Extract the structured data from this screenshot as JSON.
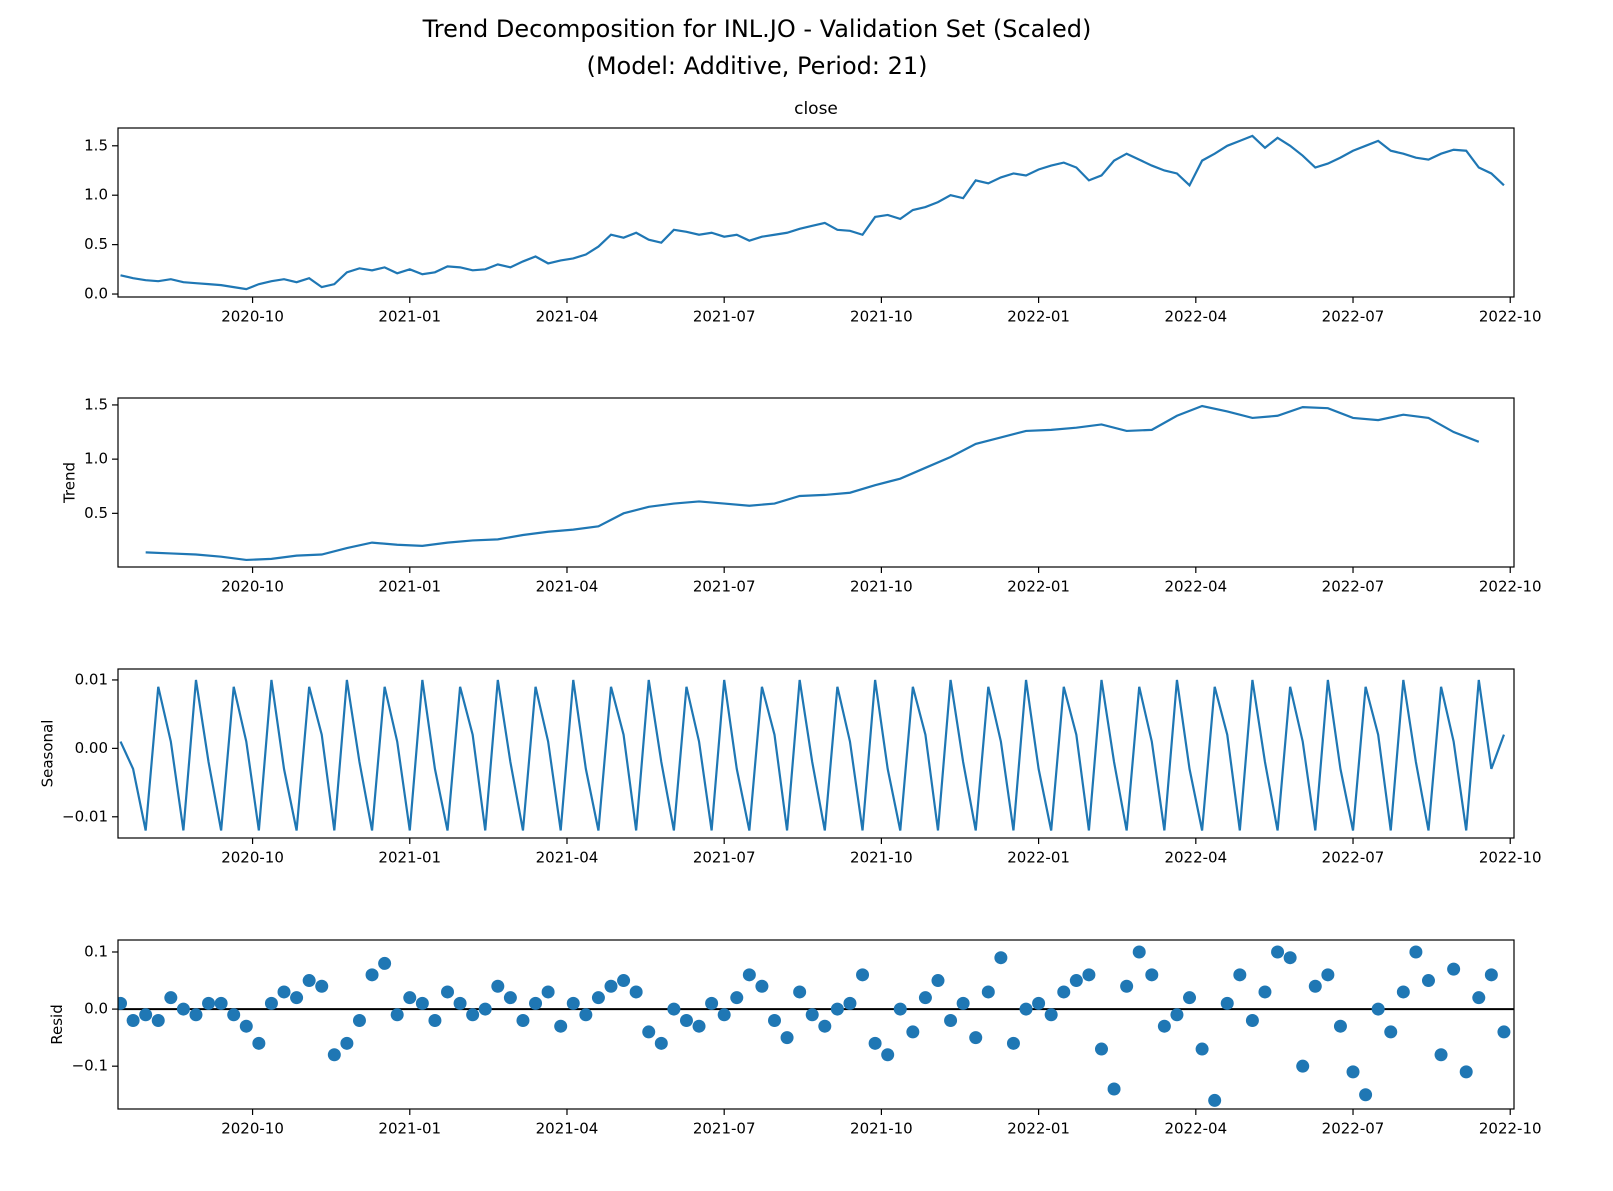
{
  "title": [
    "Trend Decomposition for INL.JO - Validation Set (Scaled)",
    "(Model: Additive, Period: 21)"
  ],
  "chart_data": [
    {
      "type": "line",
      "title": "close",
      "color": "#1f77b4",
      "x": [
        2020.54,
        2020.56,
        2020.58,
        2020.6,
        2020.62,
        2020.64,
        2020.66,
        2020.68,
        2020.7,
        2020.72,
        2020.74,
        2020.76,
        2020.78,
        2020.8,
        2020.82,
        2020.84,
        2020.86,
        2020.88,
        2020.9,
        2020.92,
        2020.94,
        2020.96,
        2020.98,
        2021,
        2021.02,
        2021.04,
        2021.06,
        2021.08,
        2021.1,
        2021.12,
        2021.14,
        2021.16,
        2021.18,
        2021.2,
        2021.22,
        2021.24,
        2021.26,
        2021.28,
        2021.3,
        2021.32,
        2021.34,
        2021.36,
        2021.38,
        2021.4,
        2021.42,
        2021.44,
        2021.46,
        2021.48,
        2021.5,
        2021.52,
        2021.54,
        2021.56,
        2021.58,
        2021.6,
        2021.62,
        2021.64,
        2021.66,
        2021.68,
        2021.7,
        2021.72,
        2021.74,
        2021.76,
        2021.78,
        2021.8,
        2021.82,
        2021.84,
        2021.86,
        2021.88,
        2021.9,
        2021.92,
        2021.94,
        2021.96,
        2021.98,
        2022,
        2022.02,
        2022.04,
        2022.06,
        2022.08,
        2022.1,
        2022.12,
        2022.14,
        2022.16,
        2022.18,
        2022.2,
        2022.22,
        2022.24,
        2022.26,
        2022.28,
        2022.3,
        2022.32,
        2022.34,
        2022.36,
        2022.38,
        2022.4,
        2022.42,
        2022.44,
        2022.46,
        2022.48,
        2022.5,
        2022.52,
        2022.54,
        2022.56,
        2022.58,
        2022.6,
        2022.62,
        2022.64,
        2022.66,
        2022.68,
        2022.7,
        2022.72,
        2022.74
      ],
      "values": [
        0.19,
        0.16,
        0.14,
        0.13,
        0.15,
        0.12,
        0.11,
        0.1,
        0.09,
        0.07,
        0.05,
        0.1,
        0.13,
        0.15,
        0.12,
        0.16,
        0.07,
        0.1,
        0.22,
        0.26,
        0.24,
        0.27,
        0.21,
        0.25,
        0.2,
        0.22,
        0.28,
        0.27,
        0.24,
        0.25,
        0.3,
        0.27,
        0.33,
        0.38,
        0.31,
        0.34,
        0.36,
        0.4,
        0.48,
        0.6,
        0.57,
        0.62,
        0.55,
        0.52,
        0.65,
        0.63,
        0.6,
        0.62,
        0.58,
        0.6,
        0.54,
        0.58,
        0.6,
        0.62,
        0.66,
        0.69,
        0.72,
        0.65,
        0.64,
        0.6,
        0.78,
        0.8,
        0.76,
        0.85,
        0.88,
        0.93,
        1.0,
        0.97,
        1.15,
        1.12,
        1.18,
        1.22,
        1.2,
        1.26,
        1.3,
        1.33,
        1.28,
        1.15,
        1.2,
        1.35,
        1.42,
        1.36,
        1.3,
        1.25,
        1.22,
        1.1,
        1.35,
        1.42,
        1.5,
        1.55,
        1.6,
        1.48,
        1.58,
        1.5,
        1.4,
        1.28,
        1.32,
        1.38,
        1.45,
        1.5,
        1.55,
        1.45,
        1.42,
        1.38,
        1.36,
        1.42,
        1.46,
        1.45,
        1.28,
        1.22,
        1.1
      ],
      "xlim": [
        2020.536,
        2022.756
      ],
      "ylim": [
        -0.03,
        1.68
      ],
      "xticks": [
        {
          "value": 2020.75,
          "label": "2020-10"
        },
        {
          "value": 2021.0,
          "label": "2021-01"
        },
        {
          "value": 2021.25,
          "label": "2021-04"
        },
        {
          "value": 2021.5,
          "label": "2021-07"
        },
        {
          "value": 2021.75,
          "label": "2021-10"
        },
        {
          "value": 2022.0,
          "label": "2022-01"
        },
        {
          "value": 2022.25,
          "label": "2022-04"
        },
        {
          "value": 2022.5,
          "label": "2022-07"
        },
        {
          "value": 2022.75,
          "label": "2022-10"
        }
      ],
      "yticks": [
        {
          "value": 0,
          "label": "0.0"
        },
        0.5,
        {
          "value": 1,
          "label": "1.0"
        },
        1.5
      ]
    },
    {
      "type": "line",
      "ylabel": "Trend",
      "color": "#1f77b4",
      "x": [
        2020.58,
        2020.62,
        2020.66,
        2020.7,
        2020.74,
        2020.78,
        2020.82,
        2020.86,
        2020.9,
        2020.94,
        2020.98,
        2021.02,
        2021.06,
        2021.1,
        2021.14,
        2021.18,
        2021.22,
        2021.26,
        2021.3,
        2021.34,
        2021.38,
        2021.42,
        2021.46,
        2021.5,
        2021.54,
        2021.58,
        2021.62,
        2021.66,
        2021.7,
        2021.74,
        2021.78,
        2021.82,
        2021.86,
        2021.9,
        2021.94,
        2021.98,
        2022.02,
        2022.06,
        2022.1,
        2022.14,
        2022.18,
        2022.22,
        2022.26,
        2022.3,
        2022.34,
        2022.38,
        2022.42,
        2022.46,
        2022.5,
        2022.54,
        2022.58,
        2022.62,
        2022.66,
        2022.7
      ],
      "values": [
        0.14,
        0.13,
        0.12,
        0.1,
        0.07,
        0.08,
        0.11,
        0.12,
        0.18,
        0.23,
        0.21,
        0.2,
        0.23,
        0.25,
        0.26,
        0.3,
        0.33,
        0.35,
        0.38,
        0.5,
        0.56,
        0.59,
        0.61,
        0.59,
        0.57,
        0.59,
        0.66,
        0.67,
        0.69,
        0.76,
        0.82,
        0.92,
        1.02,
        1.14,
        1.2,
        1.26,
        1.27,
        1.29,
        1.32,
        1.26,
        1.27,
        1.4,
        1.49,
        1.44,
        1.38,
        1.4,
        1.48,
        1.47,
        1.38,
        1.36,
        1.41,
        1.38,
        1.25,
        1.16
      ],
      "xlim": [
        2020.536,
        2022.756
      ],
      "ylim": [
        0.005,
        1.564
      ],
      "xticks": [
        {
          "value": 2020.75,
          "label": "2020-10"
        },
        {
          "value": 2021.0,
          "label": "2021-01"
        },
        {
          "value": 2021.25,
          "label": "2021-04"
        },
        {
          "value": 2021.5,
          "label": "2021-07"
        },
        {
          "value": 2021.75,
          "label": "2021-10"
        },
        {
          "value": 2022.0,
          "label": "2022-01"
        },
        {
          "value": 2022.25,
          "label": "2022-04"
        },
        {
          "value": 2022.5,
          "label": "2022-07"
        },
        {
          "value": 2022.75,
          "label": "2022-10"
        }
      ],
      "yticks": [
        0.5,
        {
          "value": 1,
          "label": "1.0"
        },
        1.5
      ]
    },
    {
      "type": "line",
      "ylabel": "Seasonal",
      "color": "#1f77b4",
      "x": [
        2020.54,
        2020.56,
        2020.58,
        2020.6,
        2020.62,
        2020.64,
        2020.66,
        2020.68,
        2020.7,
        2020.72,
        2020.74,
        2020.76,
        2020.78,
        2020.8,
        2020.82,
        2020.84,
        2020.86,
        2020.88,
        2020.9,
        2020.92,
        2020.94,
        2020.96,
        2020.98,
        2021,
        2021.02,
        2021.04,
        2021.06,
        2021.08,
        2021.1,
        2021.12,
        2021.14,
        2021.16,
        2021.18,
        2021.2,
        2021.22,
        2021.24,
        2021.26,
        2021.28,
        2021.3,
        2021.32,
        2021.34,
        2021.36,
        2021.38,
        2021.4,
        2021.42,
        2021.44,
        2021.46,
        2021.48,
        2021.5,
        2021.52,
        2021.54,
        2021.56,
        2021.58,
        2021.6,
        2021.62,
        2021.64,
        2021.66,
        2021.68,
        2021.7,
        2021.72,
        2021.74,
        2021.76,
        2021.78,
        2021.8,
        2021.82,
        2021.84,
        2021.86,
        2021.88,
        2021.9,
        2021.92,
        2021.94,
        2021.96,
        2021.98,
        2022,
        2022.02,
        2022.04,
        2022.06,
        2022.08,
        2022.1,
        2022.12,
        2022.14,
        2022.16,
        2022.18,
        2022.2,
        2022.22,
        2022.24,
        2022.26,
        2022.28,
        2022.3,
        2022.32,
        2022.34,
        2022.36,
        2022.38,
        2022.4,
        2022.42,
        2022.44,
        2022.46,
        2022.48,
        2022.5,
        2022.52,
        2022.54,
        2022.56,
        2022.58,
        2022.6,
        2022.62,
        2022.64,
        2022.66,
        2022.68,
        2022.7,
        2022.72,
        2022.74
      ],
      "values": [
        0.001,
        -0.003,
        -0.012,
        0.009,
        0.001,
        -0.012,
        0.01,
        -0.002,
        -0.012,
        0.009,
        0.001,
        -0.012,
        0.01,
        -0.003,
        -0.012,
        0.009,
        0.002,
        -0.012,
        0.01,
        -0.002,
        -0.012,
        0.009,
        0.001,
        -0.012,
        0.01,
        -0.003,
        -0.012,
        0.009,
        0.002,
        -0.012,
        0.01,
        -0.002,
        -0.012,
        0.009,
        0.001,
        -0.012,
        0.01,
        -0.003,
        -0.012,
        0.009,
        0.002,
        -0.012,
        0.01,
        -0.002,
        -0.012,
        0.009,
        0.001,
        -0.012,
        0.01,
        -0.003,
        -0.012,
        0.009,
        0.002,
        -0.012,
        0.01,
        -0.002,
        -0.012,
        0.009,
        0.001,
        -0.012,
        0.01,
        -0.003,
        -0.012,
        0.009,
        0.002,
        -0.012,
        0.01,
        -0.002,
        -0.012,
        0.009,
        0.001,
        -0.012,
        0.01,
        -0.003,
        -0.012,
        0.009,
        0.002,
        -0.012,
        0.01,
        -0.002,
        -0.012,
        0.009,
        0.001,
        -0.012,
        0.01,
        -0.003,
        -0.012,
        0.009,
        0.002,
        -0.012,
        0.01,
        -0.002,
        -0.012,
        0.009,
        0.001,
        -0.012,
        0.01,
        -0.003,
        -0.012,
        0.009,
        0.002,
        -0.012,
        0.01,
        -0.002,
        -0.012,
        0.009,
        0.001,
        -0.012,
        0.01,
        -0.003,
        0.002
      ],
      "xlim": [
        2020.536,
        2022.756
      ],
      "ylim": [
        -0.0131,
        0.0116
      ],
      "xticks": [
        {
          "value": 2020.75,
          "label": "2020-10"
        },
        {
          "value": 2021.0,
          "label": "2021-01"
        },
        {
          "value": 2021.25,
          "label": "2021-04"
        },
        {
          "value": 2021.5,
          "label": "2021-07"
        },
        {
          "value": 2021.75,
          "label": "2021-10"
        },
        {
          "value": 2022.0,
          "label": "2022-01"
        },
        {
          "value": 2022.25,
          "label": "2022-04"
        },
        {
          "value": 2022.5,
          "label": "2022-07"
        },
        {
          "value": 2022.75,
          "label": "2022-10"
        }
      ],
      "yticks": [
        {
          "value": -0.01,
          "label": "−0.01"
        },
        {
          "value": 0,
          "label": "0.00"
        },
        0.01
      ]
    },
    {
      "type": "scatter",
      "ylabel": "Resid",
      "color": "#1f77b4",
      "x": [
        2020.54,
        2020.56,
        2020.58,
        2020.6,
        2020.62,
        2020.64,
        2020.66,
        2020.68,
        2020.7,
        2020.72,
        2020.74,
        2020.76,
        2020.78,
        2020.8,
        2020.82,
        2020.84,
        2020.86,
        2020.88,
        2020.9,
        2020.92,
        2020.94,
        2020.96,
        2020.98,
        2021,
        2021.02,
        2021.04,
        2021.06,
        2021.08,
        2021.1,
        2021.12,
        2021.14,
        2021.16,
        2021.18,
        2021.2,
        2021.22,
        2021.24,
        2021.26,
        2021.28,
        2021.3,
        2021.32,
        2021.34,
        2021.36,
        2021.38,
        2021.4,
        2021.42,
        2021.44,
        2021.46,
        2021.48,
        2021.5,
        2021.52,
        2021.54,
        2021.56,
        2021.58,
        2021.6,
        2021.62,
        2021.64,
        2021.66,
        2021.68,
        2021.7,
        2021.72,
        2021.74,
        2021.76,
        2021.78,
        2021.8,
        2021.82,
        2021.84,
        2021.86,
        2021.88,
        2021.9,
        2021.92,
        2021.94,
        2021.96,
        2021.98,
        2022,
        2022.02,
        2022.04,
        2022.06,
        2022.08,
        2022.1,
        2022.12,
        2022.14,
        2022.16,
        2022.18,
        2022.2,
        2022.22,
        2022.24,
        2022.26,
        2022.28,
        2022.3,
        2022.32,
        2022.34,
        2022.36,
        2022.38,
        2022.4,
        2022.42,
        2022.44,
        2022.46,
        2022.48,
        2022.5,
        2022.52,
        2022.54,
        2022.56,
        2022.58,
        2022.6,
        2022.62,
        2022.64,
        2022.66,
        2022.68,
        2022.7,
        2022.72,
        2022.74
      ],
      "values": [
        0.01,
        -0.02,
        -0.01,
        -0.02,
        0.02,
        0.0,
        -0.01,
        0.01,
        0.01,
        -0.01,
        -0.03,
        -0.06,
        0.01,
        0.03,
        0.02,
        0.05,
        0.04,
        -0.08,
        -0.06,
        -0.02,
        0.06,
        0.08,
        -0.01,
        0.02,
        0.01,
        -0.02,
        0.03,
        0.01,
        -0.01,
        0.0,
        0.04,
        0.02,
        -0.02,
        0.01,
        0.03,
        -0.03,
        0.01,
        -0.01,
        0.02,
        0.04,
        0.05,
        0.03,
        -0.04,
        -0.06,
        0.0,
        -0.02,
        -0.03,
        0.01,
        -0.01,
        0.02,
        0.06,
        0.04,
        -0.02,
        -0.05,
        0.03,
        -0.01,
        -0.03,
        0.0,
        0.01,
        0.06,
        -0.06,
        -0.08,
        0.0,
        -0.04,
        0.02,
        0.05,
        -0.02,
        0.01,
        -0.05,
        0.03,
        0.09,
        -0.06,
        0.0,
        0.01,
        -0.01,
        0.03,
        0.05,
        0.06,
        -0.07,
        -0.14,
        0.04,
        0.1,
        0.06,
        -0.03,
        -0.01,
        0.02,
        -0.07,
        -0.16,
        0.01,
        0.06,
        -0.02,
        0.03,
        0.1,
        0.09,
        -0.1,
        0.04,
        0.06,
        -0.03,
        -0.11,
        -0.15,
        0.0,
        -0.04,
        0.03,
        0.1,
        0.05,
        -0.08,
        0.07,
        -0.11,
        0.02,
        0.06,
        -0.04
      ],
      "xlim": [
        2020.536,
        2022.756
      ],
      "ylim": [
        -0.175,
        0.121
      ],
      "xticks": [
        {
          "value": 2020.75,
          "label": "2020-10"
        },
        {
          "value": 2021.0,
          "label": "2021-01"
        },
        {
          "value": 2021.25,
          "label": "2021-04"
        },
        {
          "value": 2021.5,
          "label": "2021-07"
        },
        {
          "value": 2021.75,
          "label": "2021-10"
        },
        {
          "value": 2022.0,
          "label": "2022-01"
        },
        {
          "value": 2022.25,
          "label": "2022-04"
        },
        {
          "value": 2022.5,
          "label": "2022-07"
        },
        {
          "value": 2022.75,
          "label": "2022-10"
        }
      ],
      "yticks": [
        {
          "value": -0.1,
          "label": "−0.1"
        },
        {
          "value": 0,
          "label": "0.0"
        },
        0.1
      ]
    }
  ]
}
